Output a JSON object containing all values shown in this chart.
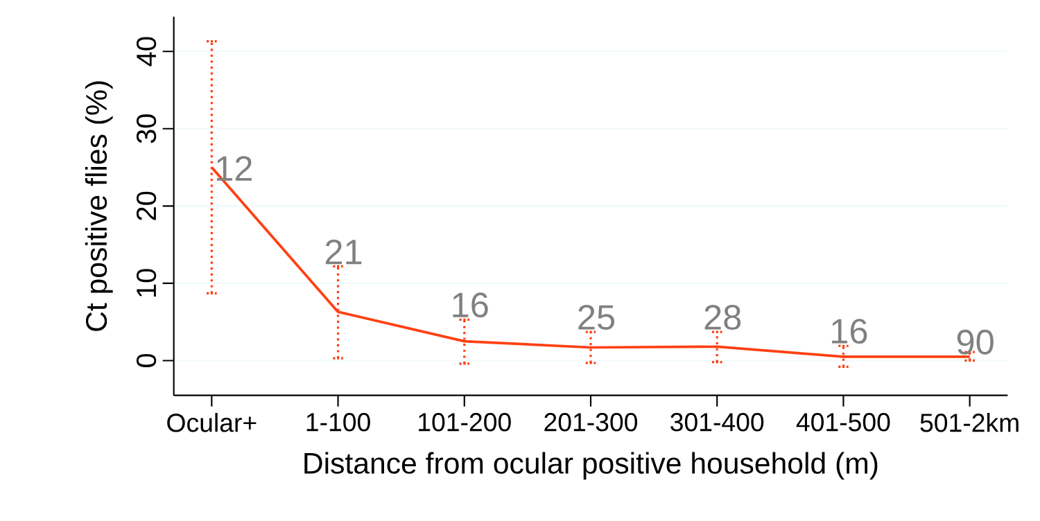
{
  "chart_data": {
    "type": "line",
    "xlabel": "Distance from ocular positive household (m)",
    "ylabel": "Ct positive flies (%)",
    "categories": [
      "Ocular+",
      "1-100",
      "101-200",
      "201-300",
      "301-400",
      "401-500",
      "501-2km"
    ],
    "series": [
      {
        "color": "#ff4013",
        "values": [
          25,
          6.3,
          2.5,
          1.7,
          1.8,
          0.5,
          0.5
        ],
        "errors": [
          [
            8.7,
            41.3
          ],
          [
            0.3,
            12.2
          ],
          [
            -0.4,
            5.3
          ],
          [
            -0.3,
            3.7
          ],
          [
            -0.2,
            3.7
          ],
          [
            -0.8,
            1.9
          ],
          [
            0,
            1.1
          ]
        ]
      }
    ],
    "ylim": [
      -4.5,
      44.5
    ],
    "yticks": [
      0,
      10,
      20,
      30,
      40
    ],
    "grid": "y",
    "marker": "none",
    "line_style": "solid",
    "annotations": [
      {
        "text": "12",
        "x": "Ocular+",
        "y": 23
      },
      {
        "text": "21",
        "x": "1-100",
        "y": 12.2
      },
      {
        "text": "16",
        "x": "101-200",
        "y": 5.3
      },
      {
        "text": "25",
        "x": "201-300",
        "y": 3.7
      },
      {
        "text": "28",
        "x": "301-400",
        "y": 3.7
      },
      {
        "text": "16",
        "x": "401-500",
        "y": 1.9
      },
      {
        "text": "90",
        "x": "501-2km",
        "y": 0.5
      }
    ]
  }
}
